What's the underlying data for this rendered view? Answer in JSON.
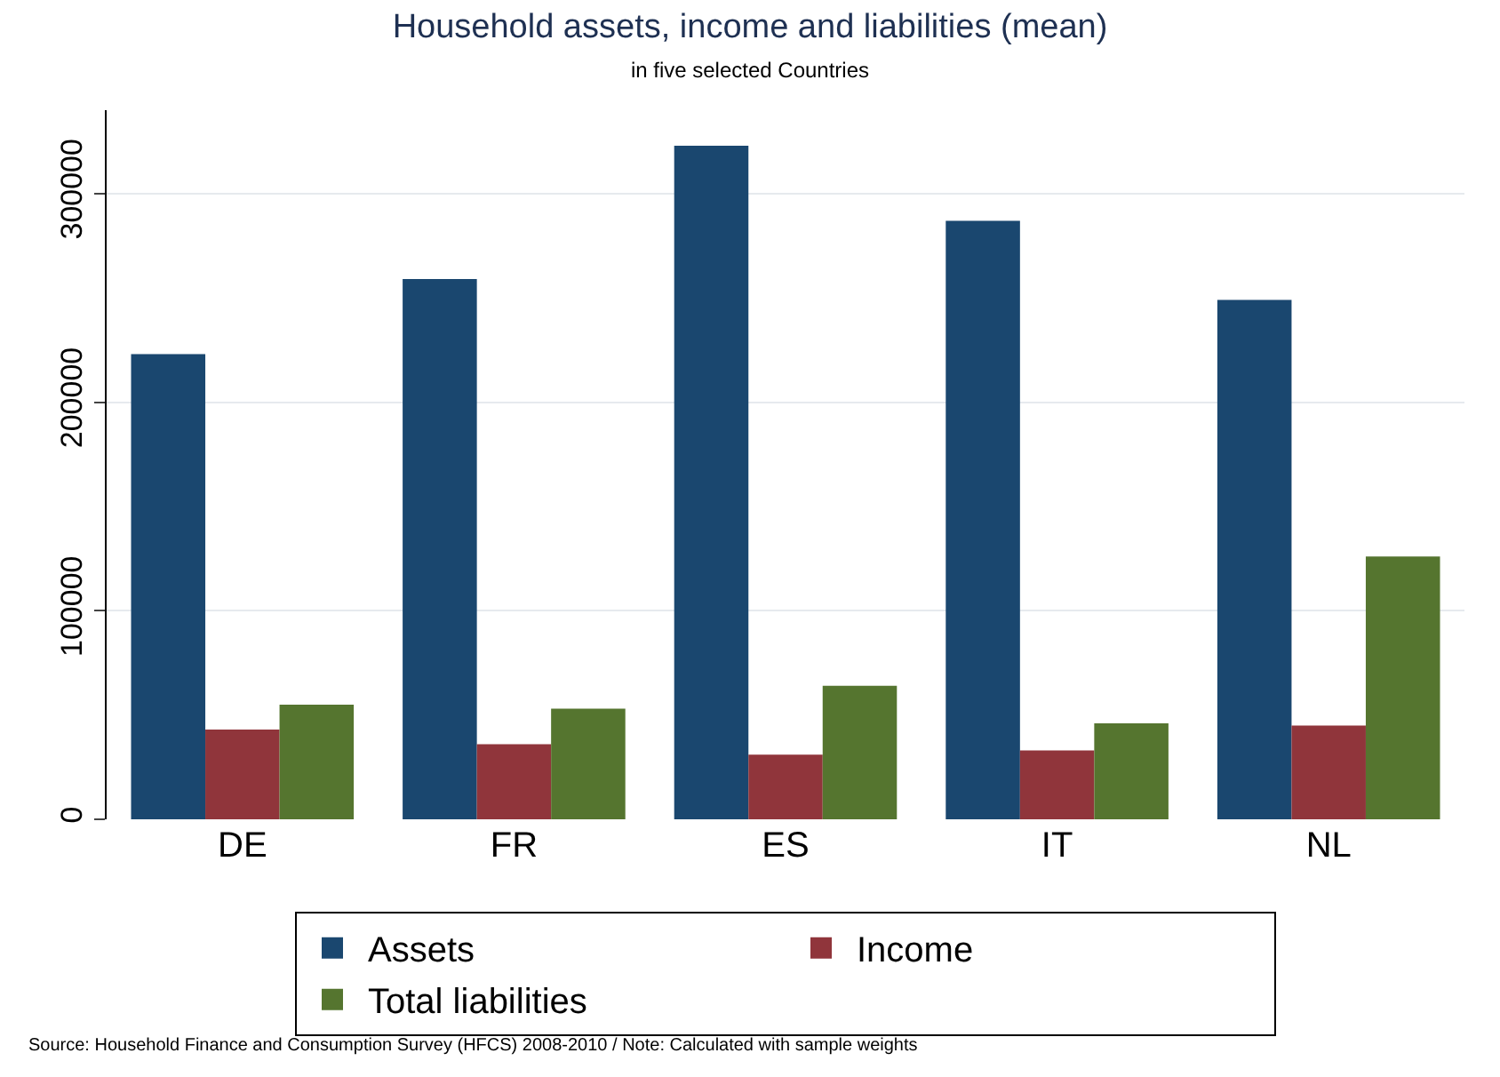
{
  "chart_data": {
    "type": "bar",
    "title": "Household assets, income and liabilities (mean)",
    "subtitle": "in five selected Countries",
    "categories": [
      "DE",
      "FR",
      "ES",
      "IT",
      "NL"
    ],
    "series": [
      {
        "name": "Assets",
        "color": "#1a476f",
        "values": [
          223000,
          259000,
          323000,
          287000,
          249000
        ]
      },
      {
        "name": "Income",
        "color": "#90353b",
        "values": [
          43000,
          36000,
          31000,
          33000,
          45000
        ]
      },
      {
        "name": "Total liabilities",
        "color": "#55752f",
        "values": [
          55000,
          53000,
          64000,
          46000,
          126000
        ]
      }
    ],
    "ylim": [
      0,
      340000
    ],
    "yticks": [
      0,
      100000,
      200000,
      300000
    ],
    "grid": "y",
    "legend": "bottom",
    "annotations": [
      "Source: Household Finance and Consumption Survey (HFCS) 2008-2010 / Note: Calculated with sample weights"
    ]
  }
}
